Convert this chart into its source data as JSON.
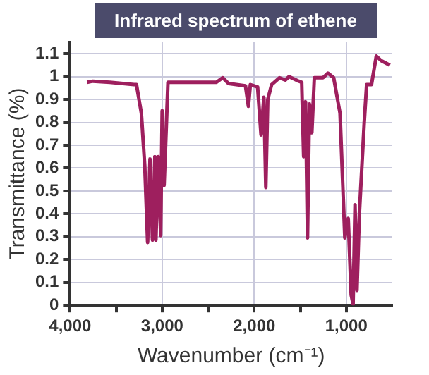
{
  "chart_data": {
    "type": "line",
    "title": "Infrared spectrum of ethene",
    "xlabel": "Wavenumber (cm⁻¹)",
    "ylabel": "Transmittance (%)",
    "xlim": [
      4000,
      500
    ],
    "ylim": [
      0,
      1.15
    ],
    "xticks": [
      {
        "value": 4000,
        "label": "4,000"
      },
      {
        "value": 3500,
        "label": null
      },
      {
        "value": 3000,
        "label": "3,000"
      },
      {
        "value": 2500,
        "label": null
      },
      {
        "value": 2000,
        "label": "2,000"
      },
      {
        "value": 1500,
        "label": null
      },
      {
        "value": 1000,
        "label": "1,000"
      }
    ],
    "yticks": [
      0,
      0.1,
      0.2,
      0.3,
      0.4,
      0.5,
      0.6,
      0.7,
      0.8,
      0.9,
      1,
      1.1
    ],
    "grid": true,
    "legend": false,
    "marker": "none",
    "line_style": "solid",
    "series": [
      {
        "color": "#9e1f5e",
        "x": [
          3816,
          3753,
          3568,
          3305,
          3279,
          3226,
          3189,
          3158,
          3132,
          3105,
          3079,
          3068,
          3042,
          3016,
          3000,
          2979,
          2937,
          2411,
          2342,
          2279,
          2095,
          2063,
          2042,
          1963,
          1926,
          1895,
          1874,
          1853,
          1811,
          1726,
          1663,
          1621,
          1516,
          1484,
          1463,
          1442,
          1421,
          1400,
          1374,
          1347,
          1253,
          1200,
          1137,
          1068,
          1016,
          979,
          947,
          926,
          905,
          884,
          858,
          805,
          779,
          726,
          674,
          621,
          526
        ],
        "values": [
          0.975,
          0.98,
          0.975,
          0.965,
          0.965,
          0.84,
          0.61,
          0.275,
          0.64,
          0.285,
          0.65,
          0.285,
          0.65,
          0.305,
          0.85,
          0.525,
          0.975,
          0.975,
          0.995,
          0.97,
          0.96,
          0.87,
          0.965,
          0.955,
          0.745,
          0.91,
          0.515,
          0.9,
          0.965,
          0.995,
          0.985,
          1.0,
          0.98,
          0.975,
          0.65,
          0.89,
          0.295,
          0.88,
          0.755,
          0.995,
          0.995,
          1.015,
          0.995,
          0.84,
          0.295,
          0.38,
          0.045,
          0.005,
          0.44,
          0.065,
          0.4,
          0.8,
          0.965,
          0.965,
          1.09,
          1.07,
          1.05
        ]
      }
    ]
  }
}
